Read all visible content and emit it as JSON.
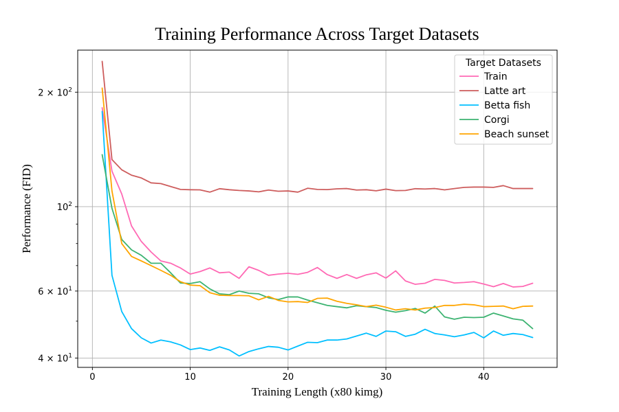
{
  "chart_data": {
    "type": "line",
    "title": "Training Performance Across Target Datasets",
    "xlabel": "Training Length (x80 kimg)",
    "ylabel": "Performance (FID)",
    "yscale": "log",
    "xlim": [
      -1.5,
      47.5
    ],
    "ylim": [
      37.8,
      258
    ],
    "grid": true,
    "xticks": [
      0,
      10,
      20,
      30,
      40
    ],
    "xtick_labels": [
      "0",
      "10",
      "20",
      "30",
      "40"
    ],
    "yticks": [
      40,
      60,
      100,
      200
    ],
    "ytick_labels": [
      {
        "base": "4 × 10",
        "exp": "1"
      },
      {
        "base": "6 × 10",
        "exp": "1"
      },
      {
        "base": "10",
        "exp": "2"
      },
      {
        "base": "2 × 10",
        "exp": "2"
      }
    ],
    "minor_yticks": [
      50,
      70,
      80,
      90
    ],
    "legend": {
      "title": "Target Datasets",
      "location": "upper right"
    },
    "x": [
      1,
      2,
      3,
      4,
      5,
      6,
      7,
      8,
      9,
      10,
      11,
      12,
      13,
      14,
      15,
      16,
      17,
      18,
      19,
      20,
      21,
      22,
      23,
      24,
      25,
      26,
      27,
      28,
      29,
      30,
      31,
      32,
      33,
      34,
      35,
      36,
      37,
      38,
      39,
      40,
      41,
      42,
      43,
      44,
      45
    ],
    "series": [
      {
        "name": "Train",
        "color": "#ff69b4",
        "values": [
          182,
          124,
          108,
          89,
          81,
          76,
          72,
          71,
          69,
          66.5,
          67.5,
          69,
          67,
          67.3,
          64.8,
          69.5,
          68,
          66,
          66.5,
          66.8,
          66.4,
          67.2,
          69.2,
          66.3,
          64.8,
          66.3,
          64.8,
          66.2,
          67,
          64.9,
          67.8,
          63.8,
          62.5,
          62.9,
          64.4,
          64,
          63,
          63.2,
          63.5,
          62.6,
          61.6,
          62.8,
          61.5,
          61.7,
          62.9
        ]
      },
      {
        "name": "Latte art",
        "color": "#cd5c5c",
        "values": [
          241,
          133,
          125,
          121,
          119,
          115.5,
          115,
          113,
          111,
          110.8,
          110.7,
          109.2,
          111.5,
          110.8,
          110.3,
          110,
          109.4,
          110.6,
          109.8,
          110,
          109.2,
          111.8,
          111,
          110.9,
          111.4,
          111.6,
          110.6,
          110.8,
          110.1,
          111.2,
          110.2,
          110.3,
          111.5,
          111.3,
          111.6,
          110.7,
          111.6,
          112.4,
          112.6,
          112.6,
          112.4,
          113.6,
          111.6,
          111.6,
          111.6
        ]
      },
      {
        "name": "Betta fish",
        "color": "#00bfff",
        "values": [
          178,
          66,
          53,
          47.8,
          45.2,
          43.8,
          44.6,
          44.1,
          43.3,
          42.1,
          42.5,
          41.9,
          42.8,
          42,
          40.5,
          41.6,
          42.3,
          42.9,
          42.7,
          42,
          43,
          44,
          43.9,
          44.6,
          44.6,
          44.9,
          45.7,
          46.5,
          45.6,
          47.1,
          46.9,
          45.6,
          46.2,
          47.6,
          46.4,
          46,
          45.5,
          46,
          46.7,
          45.2,
          47.1,
          45.9,
          46.4,
          46.1,
          45.3
        ]
      },
      {
        "name": "Corgi",
        "color": "#3cb371",
        "values": [
          137,
          99,
          82,
          77,
          74.5,
          71,
          71,
          67,
          63,
          62.8,
          63.5,
          60.8,
          59,
          58.7,
          60,
          59.2,
          59,
          57.6,
          57,
          57.9,
          57.9,
          56.8,
          55.9,
          55,
          54.6,
          54.2,
          54.9,
          54.6,
          54.3,
          53.4,
          52.8,
          53.3,
          54,
          52.5,
          54.8,
          51.3,
          50.6,
          51.2,
          51.1,
          51.2,
          52.5,
          51.6,
          50.7,
          50.3,
          47.8
        ]
      },
      {
        "name": "Beach sunset",
        "color": "#ffa500",
        "values": [
          205,
          110,
          80,
          74,
          72,
          70,
          68,
          66,
          63.5,
          62.2,
          62,
          59.4,
          58.5,
          58.4,
          58.4,
          58.3,
          56.9,
          58.1,
          56.7,
          56.2,
          56.3,
          56,
          57.4,
          57.5,
          56.4,
          55.7,
          55.2,
          54.6,
          55.1,
          54.4,
          53.5,
          53.9,
          53.5,
          54.1,
          54.3,
          55,
          55,
          55.4,
          55.2,
          54.6,
          54.7,
          54.8,
          53.9,
          54.7,
          54.8
        ]
      }
    ]
  }
}
